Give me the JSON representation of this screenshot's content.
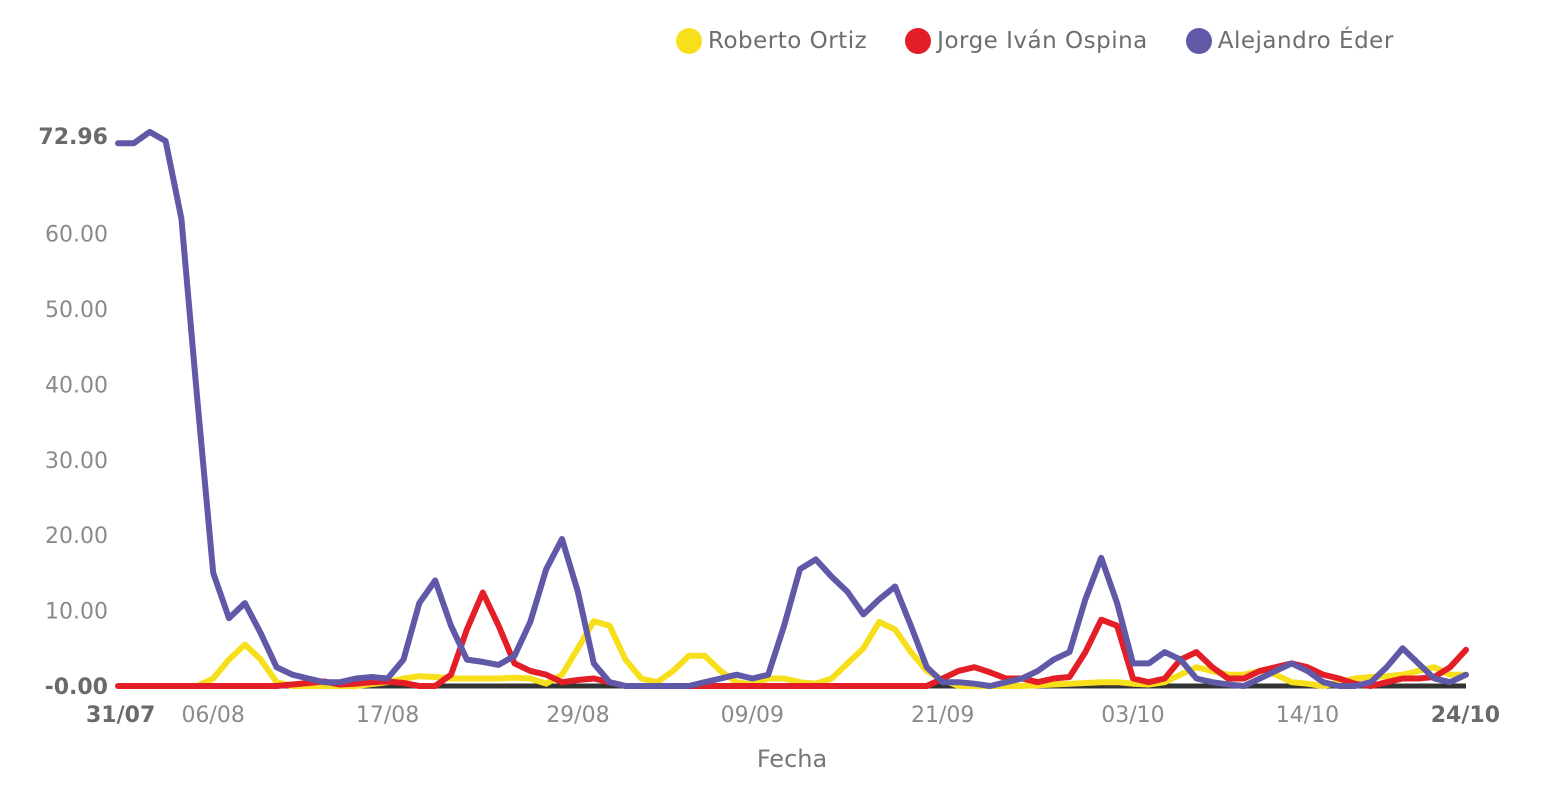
{
  "chart_data": {
    "type": "line",
    "xlabel": "Fecha",
    "x_ticks": [
      "31/07",
      "06/08",
      "17/08",
      "29/08",
      "09/09",
      "21/09",
      "03/10",
      "14/10",
      "24/10"
    ],
    "x_ticks_bold": [
      "31/07",
      "24/10"
    ],
    "y_ticks": [
      "-0.00",
      "10.00",
      "20.00",
      "30.00",
      "40.00",
      "50.00",
      "60.00",
      "72.96"
    ],
    "y_ticks_bold": [
      "-0.00",
      "72.96"
    ],
    "ylim": [
      0,
      72.96
    ],
    "x_range_days": [
      0,
      85
    ],
    "tick_days": [
      0,
      6,
      17,
      29,
      40,
      52,
      64,
      75,
      85
    ],
    "series": [
      {
        "name": "Roberto Ortiz",
        "color": "#f7e01b",
        "points": [
          [
            0,
            0
          ],
          [
            3,
            0
          ],
          [
            5,
            0
          ],
          [
            6,
            1
          ],
          [
            7,
            3.5
          ],
          [
            8,
            5.5
          ],
          [
            9,
            3.5
          ],
          [
            10,
            0.5
          ],
          [
            11,
            0
          ],
          [
            13,
            0
          ],
          [
            15,
            0
          ],
          [
            17,
            0.5
          ],
          [
            18,
            1
          ],
          [
            19,
            1.3
          ],
          [
            20,
            1.2
          ],
          [
            21,
            1
          ],
          [
            22,
            1
          ],
          [
            23,
            1
          ],
          [
            24,
            1
          ],
          [
            25,
            1.1
          ],
          [
            26,
            1
          ],
          [
            27,
            0.3
          ],
          [
            28,
            1.5
          ],
          [
            29,
            5
          ],
          [
            30,
            8.6
          ],
          [
            31,
            8
          ],
          [
            32,
            3.5
          ],
          [
            33,
            1
          ],
          [
            34,
            0.5
          ],
          [
            35,
            2
          ],
          [
            36,
            4
          ],
          [
            37,
            4
          ],
          [
            38,
            2
          ],
          [
            39,
            0.5
          ],
          [
            40,
            0.2
          ],
          [
            41,
            1
          ],
          [
            42,
            1
          ],
          [
            43,
            0.5
          ],
          [
            44,
            0.3
          ],
          [
            45,
            1
          ],
          [
            46,
            3
          ],
          [
            47,
            5
          ],
          [
            48,
            8.5
          ],
          [
            49,
            7.5
          ],
          [
            50,
            4.5
          ],
          [
            51,
            2
          ],
          [
            52,
            0.8
          ],
          [
            53,
            0
          ],
          [
            55,
            0
          ],
          [
            57,
            0
          ],
          [
            59,
            0.2
          ],
          [
            60,
            0.3
          ],
          [
            61,
            0.4
          ],
          [
            62,
            0.5
          ],
          [
            63,
            0.5
          ],
          [
            64,
            0.3
          ],
          [
            65,
            0.2
          ],
          [
            66,
            0.5
          ],
          [
            67,
            1.5
          ],
          [
            68,
            2.5
          ],
          [
            69,
            2
          ],
          [
            70,
            1.5
          ],
          [
            71,
            1.5
          ],
          [
            72,
            2
          ],
          [
            73,
            1.5
          ],
          [
            74,
            0.5
          ],
          [
            75,
            0.3
          ],
          [
            76,
            0
          ],
          [
            77,
            0.5
          ],
          [
            78,
            1
          ],
          [
            79,
            1.2
          ],
          [
            80,
            1.3
          ],
          [
            81,
            1.5
          ],
          [
            82,
            2
          ],
          [
            83,
            2.5
          ],
          [
            84,
            1.5
          ],
          [
            85,
            1.5
          ]
        ]
      },
      {
        "name": "Jorge Iván Ospina",
        "color": "#e41e26",
        "points": [
          [
            0,
            0
          ],
          [
            8,
            0
          ],
          [
            10,
            0
          ],
          [
            11,
            0.2
          ],
          [
            12,
            0.4
          ],
          [
            13,
            0.6
          ],
          [
            14,
            0.2
          ],
          [
            15,
            0.3
          ],
          [
            16,
            0.5
          ],
          [
            17,
            0.6
          ],
          [
            18,
            0.4
          ],
          [
            19,
            0
          ],
          [
            20,
            0
          ],
          [
            21,
            1.5
          ],
          [
            22,
            7.5
          ],
          [
            23,
            12.4
          ],
          [
            24,
            8
          ],
          [
            25,
            3
          ],
          [
            26,
            2
          ],
          [
            27,
            1.5
          ],
          [
            28,
            0.5
          ],
          [
            29,
            0.8
          ],
          [
            30,
            1
          ],
          [
            31,
            0.5
          ],
          [
            32,
            0
          ],
          [
            40,
            0
          ],
          [
            50,
            0
          ],
          [
            51,
            0
          ],
          [
            52,
            1
          ],
          [
            53,
            2
          ],
          [
            54,
            2.5
          ],
          [
            55,
            1.8
          ],
          [
            56,
            1
          ],
          [
            57,
            1
          ],
          [
            58,
            0.5
          ],
          [
            59,
            1
          ],
          [
            60,
            1.2
          ],
          [
            61,
            4.5
          ],
          [
            62,
            8.8
          ],
          [
            63,
            8
          ],
          [
            64,
            1
          ],
          [
            65,
            0.5
          ],
          [
            66,
            1
          ],
          [
            67,
            3.5
          ],
          [
            68,
            4.5
          ],
          [
            69,
            2.5
          ],
          [
            70,
            1
          ],
          [
            71,
            1
          ],
          [
            72,
            2
          ],
          [
            73,
            2.5
          ],
          [
            74,
            3
          ],
          [
            75,
            2.5
          ],
          [
            76,
            1.5
          ],
          [
            77,
            1
          ],
          [
            78,
            0.3
          ],
          [
            79,
            0
          ],
          [
            80,
            0.5
          ],
          [
            81,
            1
          ],
          [
            82,
            1
          ],
          [
            83,
            1.2
          ],
          [
            84,
            2.5
          ],
          [
            85,
            4.8
          ]
        ]
      },
      {
        "name": "Alejandro Éder",
        "color": "#5f59a8",
        "points": [
          [
            0,
            72
          ],
          [
            1,
            72
          ],
          [
            2,
            73.5
          ],
          [
            3,
            72.3
          ],
          [
            4,
            62
          ],
          [
            5,
            38
          ],
          [
            6,
            15
          ],
          [
            7,
            9
          ],
          [
            8,
            11
          ],
          [
            9,
            7
          ],
          [
            10,
            2.5
          ],
          [
            11,
            1.5
          ],
          [
            12,
            1
          ],
          [
            13,
            0.5
          ],
          [
            14,
            0.5
          ],
          [
            15,
            1
          ],
          [
            16,
            1.2
          ],
          [
            17,
            1
          ],
          [
            18,
            3.5
          ],
          [
            19,
            11
          ],
          [
            20,
            14
          ],
          [
            21,
            8
          ],
          [
            22,
            3.5
          ],
          [
            23,
            3.2
          ],
          [
            24,
            2.8
          ],
          [
            25,
            4
          ],
          [
            26,
            8.5
          ],
          [
            27,
            15.5
          ],
          [
            28,
            19.5
          ],
          [
            29,
            12.5
          ],
          [
            30,
            3
          ],
          [
            31,
            0.5
          ],
          [
            32,
            0
          ],
          [
            33,
            0
          ],
          [
            35,
            0
          ],
          [
            36,
            0
          ],
          [
            37,
            0.5
          ],
          [
            38,
            1
          ],
          [
            39,
            1.5
          ],
          [
            40,
            1
          ],
          [
            41,
            1.5
          ],
          [
            42,
            8
          ],
          [
            43,
            15.5
          ],
          [
            44,
            16.8
          ],
          [
            45,
            14.5
          ],
          [
            46,
            12.5
          ],
          [
            47,
            9.5
          ],
          [
            48,
            11.5
          ],
          [
            49,
            13.2
          ],
          [
            50,
            8
          ],
          [
            51,
            2.5
          ],
          [
            52,
            0.5
          ],
          [
            53,
            0.5
          ],
          [
            54,
            0.3
          ],
          [
            55,
            0
          ],
          [
            56,
            0.5
          ],
          [
            57,
            1
          ],
          [
            58,
            2
          ],
          [
            59,
            3.5
          ],
          [
            60,
            4.5
          ],
          [
            61,
            11.5
          ],
          [
            62,
            17
          ],
          [
            63,
            11
          ],
          [
            64,
            3
          ],
          [
            65,
            3
          ],
          [
            66,
            4.5
          ],
          [
            67,
            3.5
          ],
          [
            68,
            1
          ],
          [
            69,
            0.5
          ],
          [
            70,
            0.2
          ],
          [
            71,
            0
          ],
          [
            72,
            1
          ],
          [
            73,
            2
          ],
          [
            74,
            3
          ],
          [
            75,
            2
          ],
          [
            76,
            0.5
          ],
          [
            77,
            0
          ],
          [
            78,
            0
          ],
          [
            79,
            0.5
          ],
          [
            80,
            2.5
          ],
          [
            81,
            5
          ],
          [
            82,
            3
          ],
          [
            83,
            1
          ],
          [
            84,
            0.5
          ],
          [
            85,
            1.5
          ]
        ]
      }
    ]
  }
}
